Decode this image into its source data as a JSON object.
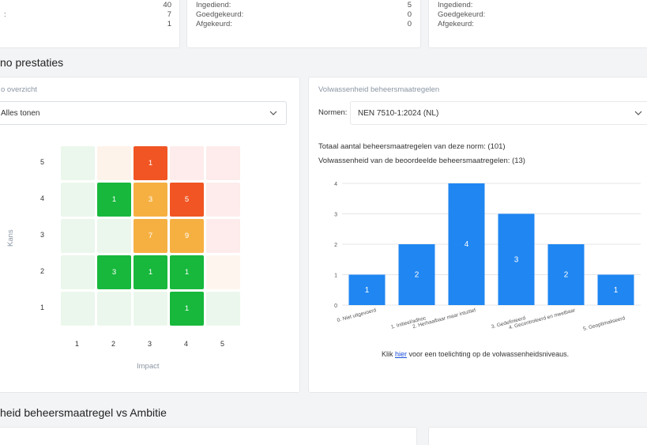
{
  "top_cards": [
    {
      "rows": [
        {
          "label": "",
          "value": "40"
        },
        {
          "label": ":",
          "value": "7"
        },
        {
          "label": "",
          "value": "1"
        }
      ]
    },
    {
      "rows": [
        {
          "label": "Ingediend:",
          "value": "5"
        },
        {
          "label": "Goedgekeurd:",
          "value": "0"
        },
        {
          "label": "Afgekeurd:",
          "value": "0"
        }
      ]
    },
    {
      "rows": [
        {
          "label": "Ingediend:",
          "value": ""
        },
        {
          "label": "Goedgekeurd:",
          "value": ""
        },
        {
          "label": "Afgekeurd:",
          "value": ""
        }
      ]
    }
  ],
  "section1_title": "no prestaties",
  "risk_card": {
    "title": "o overzicht",
    "select_value": "Alles tonen",
    "y_axis_label": "Kans",
    "x_axis_label": "Impact",
    "x_ticks": [
      "1",
      "2",
      "3",
      "4",
      "5"
    ],
    "y_ticks": [
      "5",
      "4",
      "3",
      "2",
      "1"
    ]
  },
  "heatmap": {
    "rows": [
      [
        {
          "c": "#ebf7ec",
          "v": ""
        },
        {
          "c": "#fef3ea",
          "v": ""
        },
        {
          "c": "#f05523",
          "v": "1"
        },
        {
          "c": "#fdeceb",
          "v": ""
        },
        {
          "c": "#fdeceb",
          "v": ""
        }
      ],
      [
        {
          "c": "#ebf7ec",
          "v": ""
        },
        {
          "c": "#17b83c",
          "v": "1"
        },
        {
          "c": "#f6b042",
          "v": "3"
        },
        {
          "c": "#f05523",
          "v": "5"
        },
        {
          "c": "#fdeceb",
          "v": ""
        }
      ],
      [
        {
          "c": "#ebf7ec",
          "v": ""
        },
        {
          "c": "#ebf7ec",
          "v": ""
        },
        {
          "c": "#f6b042",
          "v": "7"
        },
        {
          "c": "#f6b042",
          "v": "9"
        },
        {
          "c": "#fdeceb",
          "v": ""
        }
      ],
      [
        {
          "c": "#ebf7ec",
          "v": ""
        },
        {
          "c": "#17b83c",
          "v": "3"
        },
        {
          "c": "#17b83c",
          "v": "1"
        },
        {
          "c": "#17b83c",
          "v": "1"
        },
        {
          "c": "#fef6ee",
          "v": ""
        }
      ],
      [
        {
          "c": "#ebf7ec",
          "v": ""
        },
        {
          "c": "#ebf7ec",
          "v": ""
        },
        {
          "c": "#ebf7ec",
          "v": ""
        },
        {
          "c": "#17b83c",
          "v": "1"
        },
        {
          "c": "#ebf7ec",
          "v": ""
        }
      ]
    ]
  },
  "maturity_card": {
    "title": "Volwassenheid beheersmaatregelen",
    "normen_label": "Normen:",
    "select_value": "NEN 7510-1:2024 (NL)",
    "total_text": "Totaal aantal beheersmaatregelen van deze norm: (101)",
    "assessed_text": "Volwassenheid van de beoordeelde beheersmaatregelen: (13)",
    "footer_pre": "Klik ",
    "footer_link": "hier",
    "footer_post": " voor een toelichting op de volwassenheidsniveaus."
  },
  "chart_data": {
    "type": "bar",
    "categories": [
      "0. Niet uitgevoerd",
      "1. Initieel/adhoc",
      "2. Herhaalbaar maar intuïtief",
      "3. Gedefinieerd",
      "4. Gecontroleerd en meetbaar",
      "5. Geoptimaliseerd"
    ],
    "values": [
      1,
      2,
      4,
      3,
      2,
      1
    ],
    "ylim": [
      0,
      4
    ],
    "y_ticks": [
      0,
      1,
      2,
      3,
      4
    ],
    "bar_color": "#1f86f2",
    "grid": true
  },
  "section2_title": "heid beheersmaatregel vs Ambitie"
}
